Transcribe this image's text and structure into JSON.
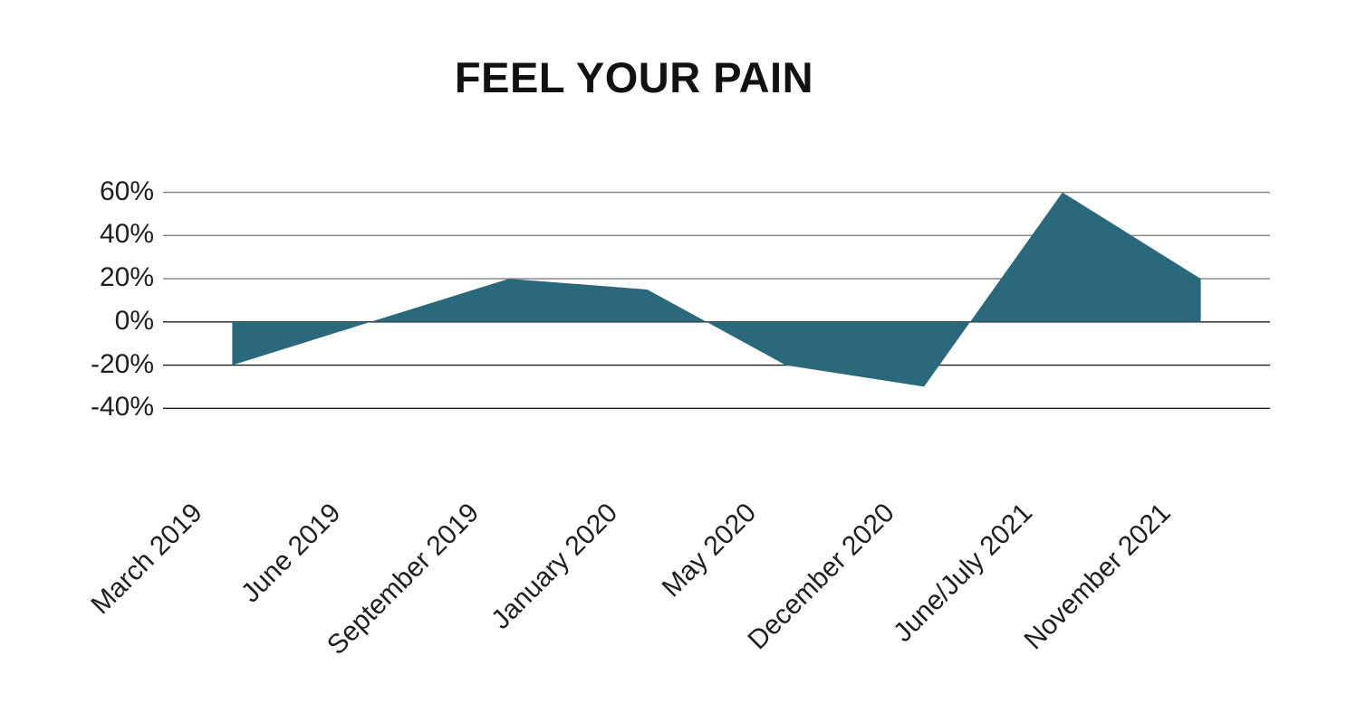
{
  "title": "FEEL YOUR PAIN",
  "colors": {
    "area": "#2A697B",
    "grid_upper": "#7F7F7F",
    "grid_lower": "#1C1C1C",
    "text": "#1F1F1F",
    "title_text": "#111111",
    "background": "#FFFFFF"
  },
  "chart_data": {
    "type": "area",
    "title": "FEEL YOUR PAIN",
    "categories": [
      "March 2019",
      "June 2019",
      "September 2019",
      "January 2020",
      "May 2020",
      "December 2020",
      "June/July 2021",
      "November 2021"
    ],
    "values": [
      -20,
      0,
      20,
      15,
      -20,
      -30,
      60,
      20
    ],
    "unit": "%",
    "xlabel": "",
    "ylabel": "",
    "ylim": [
      -40,
      60
    ],
    "ytick_step": 20,
    "ytick_labels": [
      "60%",
      "40%",
      "20%",
      "0%",
      "-20%",
      "-40%"
    ],
    "baseline": 0,
    "grid": true,
    "grid_under_area": true,
    "legend": false,
    "x_labels_rotation_deg": -45
  }
}
